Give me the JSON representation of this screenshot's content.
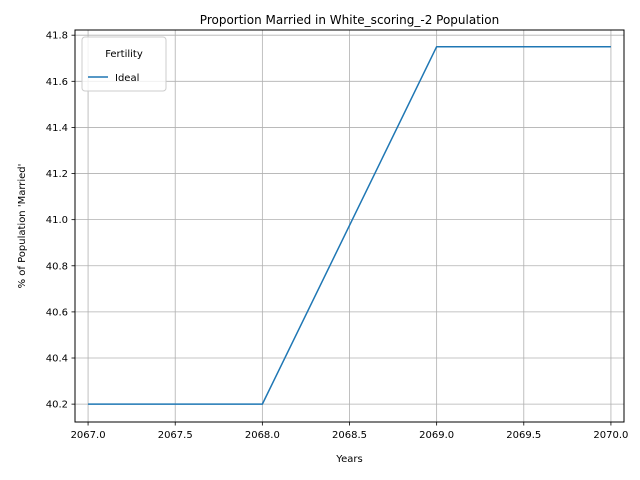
{
  "chart_data": {
    "type": "line",
    "title": "Proportion Married in White_scoring_-2 Population",
    "xlabel": "Years",
    "ylabel": "% of Population 'Married'",
    "xlim": [
      2066.925,
      2070.075
    ],
    "ylim": [
      40.1225,
      41.8225
    ],
    "x_ticks": [
      2067.0,
      2067.5,
      2068.0,
      2068.5,
      2069.0,
      2069.5,
      2070.0
    ],
    "x_tick_labels": [
      "2067.0",
      "2067.5",
      "2068.0",
      "2068.5",
      "2069.0",
      "2069.5",
      "2070.0"
    ],
    "y_ticks": [
      40.2,
      40.4,
      40.6,
      40.8,
      41.0,
      41.2,
      41.4,
      41.6,
      41.8
    ],
    "y_tick_labels": [
      "40.2",
      "40.4",
      "40.6",
      "40.8",
      "41.0",
      "41.2",
      "41.4",
      "41.6",
      "41.8"
    ],
    "grid": true,
    "legend": {
      "title": "Fertility",
      "placement": "top-left"
    },
    "x": [
      2067,
      2068,
      2069,
      2070
    ],
    "series": [
      {
        "name": "Ideal",
        "values": [
          40.2,
          40.2,
          41.75,
          41.75
        ],
        "color": "#1f77b4"
      }
    ]
  }
}
